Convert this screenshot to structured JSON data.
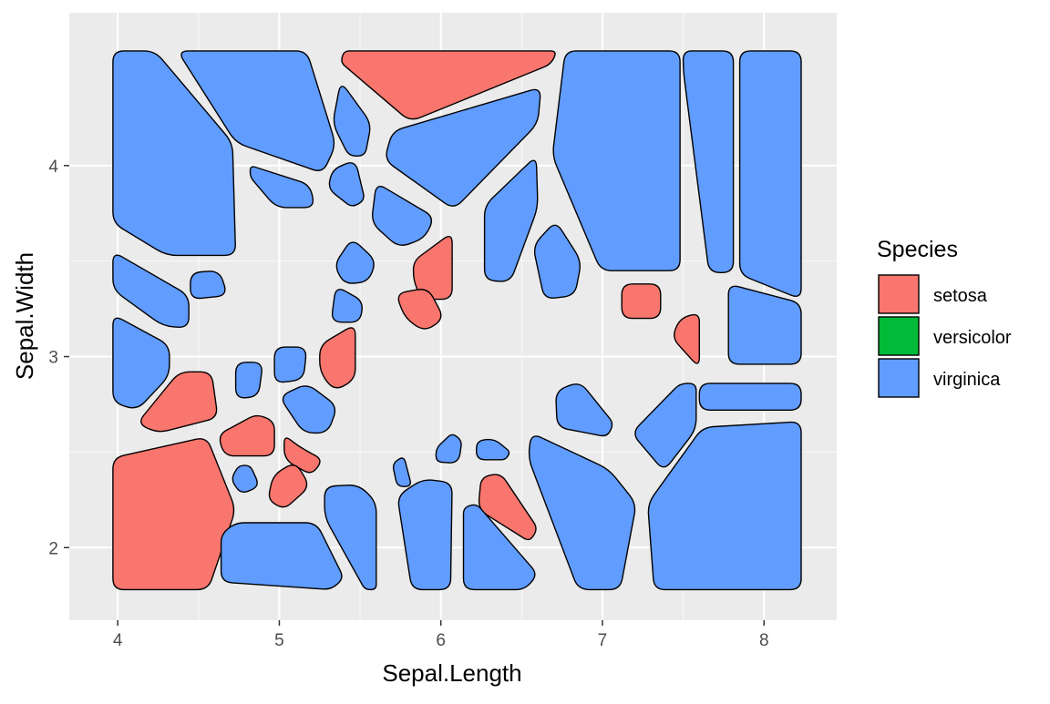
{
  "chart_data": {
    "type": "voronoi",
    "title": "",
    "xlabel": "Sepal.Length",
    "ylabel": "Sepal.Width",
    "xlim": [
      3.7,
      8.45
    ],
    "ylim": [
      1.62,
      4.8
    ],
    "x_ticks": [
      4,
      5,
      6,
      7,
      8
    ],
    "y_ticks": [
      2,
      3,
      4
    ],
    "x_tick_labels": [
      "4",
      "5",
      "6",
      "7",
      "8"
    ],
    "y_tick_labels": [
      "2",
      "3",
      "4"
    ],
    "grid": true,
    "legend": {
      "title": "Species",
      "position": "right",
      "entries": [
        {
          "label": "setosa",
          "color": "#F8766D"
        },
        {
          "label": "versicolor",
          "color": "#00BA38"
        },
        {
          "label": "virginica",
          "color": "#619CFF"
        }
      ]
    },
    "colors": {
      "panel_background": "#EBEBEB",
      "grid_major": "#FFFFFF",
      "setosa": "#F8766D",
      "versicolor": "#00BA38",
      "virginica": "#619CFF",
      "outline": "#000000"
    },
    "cells": [
      {
        "species": "virginica",
        "polygon": [
          [
            3.97,
            4.6
          ],
          [
            4.23,
            4.6
          ],
          [
            4.71,
            4.12
          ],
          [
            4.73,
            3.53
          ],
          [
            4.3,
            3.53
          ],
          [
            3.97,
            3.7
          ]
        ]
      },
      {
        "species": "virginica",
        "polygon": [
          [
            4.37,
            4.6
          ],
          [
            5.17,
            4.6
          ],
          [
            5.35,
            4.11
          ],
          [
            5.27,
            3.96
          ],
          [
            4.73,
            4.12
          ]
        ]
      },
      {
        "species": "setosa",
        "polygon": [
          [
            5.4,
            4.6
          ],
          [
            6.72,
            4.6
          ],
          [
            6.68,
            4.53
          ],
          [
            5.81,
            4.23
          ],
          [
            5.38,
            4.54
          ]
        ]
      },
      {
        "species": "virginica",
        "polygon": [
          [
            6.77,
            4.6
          ],
          [
            7.48,
            4.6
          ],
          [
            7.48,
            3.45
          ],
          [
            6.99,
            3.45
          ],
          [
            6.69,
            4.05
          ]
        ]
      },
      {
        "species": "virginica",
        "polygon": [
          [
            7.5,
            4.6
          ],
          [
            7.81,
            4.6
          ],
          [
            7.81,
            3.44
          ],
          [
            7.66,
            3.44
          ],
          [
            7.5,
            4.5
          ]
        ]
      },
      {
        "species": "virginica",
        "polygon": [
          [
            7.85,
            4.6
          ],
          [
            8.23,
            4.6
          ],
          [
            8.23,
            3.3
          ],
          [
            7.85,
            3.43
          ]
        ]
      },
      {
        "species": "virginica",
        "polygon": [
          [
            5.38,
            4.44
          ],
          [
            5.57,
            4.22
          ],
          [
            5.53,
            4.05
          ],
          [
            5.43,
            4.05
          ],
          [
            5.33,
            4.22
          ]
        ]
      },
      {
        "species": "virginica",
        "polygon": [
          [
            5.7,
            4.18
          ],
          [
            6.62,
            4.41
          ],
          [
            6.6,
            4.22
          ],
          [
            6.08,
            3.77
          ],
          [
            5.65,
            4.03
          ]
        ]
      },
      {
        "species": "virginica",
        "polygon": [
          [
            4.82,
            4.0
          ],
          [
            5.19,
            3.9
          ],
          [
            5.22,
            3.78
          ],
          [
            4.98,
            3.78
          ],
          [
            4.82,
            3.94
          ]
        ]
      },
      {
        "species": "virginica",
        "polygon": [
          [
            5.33,
            3.98
          ],
          [
            5.47,
            4.03
          ],
          [
            5.53,
            3.82
          ],
          [
            5.45,
            3.78
          ],
          [
            5.3,
            3.88
          ]
        ]
      },
      {
        "species": "virginica",
        "polygon": [
          [
            5.6,
            3.91
          ],
          [
            5.96,
            3.73
          ],
          [
            5.9,
            3.62
          ],
          [
            5.74,
            3.57
          ],
          [
            5.57,
            3.7
          ]
        ]
      },
      {
        "species": "virginica",
        "polygon": [
          [
            6.27,
            3.79
          ],
          [
            6.59,
            4.05
          ],
          [
            6.6,
            3.78
          ],
          [
            6.43,
            3.39
          ],
          [
            6.27,
            3.4
          ]
        ]
      },
      {
        "species": "virginica",
        "polygon": [
          [
            6.57,
            3.58
          ],
          [
            6.71,
            3.71
          ],
          [
            6.87,
            3.5
          ],
          [
            6.83,
            3.32
          ],
          [
            6.64,
            3.3
          ]
        ]
      },
      {
        "species": "virginica",
        "polygon": [
          [
            3.97,
            3.55
          ],
          [
            4.44,
            3.32
          ],
          [
            4.44,
            3.15
          ],
          [
            4.28,
            3.16
          ],
          [
            3.97,
            3.35
          ]
        ]
      },
      {
        "species": "virginica",
        "polygon": [
          [
            4.45,
            3.44
          ],
          [
            4.63,
            3.45
          ],
          [
            4.68,
            3.32
          ],
          [
            4.45,
            3.3
          ]
        ]
      },
      {
        "species": "virginica",
        "polygon": [
          [
            5.45,
            3.62
          ],
          [
            5.6,
            3.5
          ],
          [
            5.55,
            3.39
          ],
          [
            5.4,
            3.38
          ],
          [
            5.34,
            3.48
          ]
        ]
      },
      {
        "species": "setosa",
        "polygon": [
          [
            5.83,
            3.5
          ],
          [
            6.07,
            3.65
          ],
          [
            6.07,
            3.3
          ],
          [
            5.88,
            3.3
          ],
          [
            5.83,
            3.4
          ]
        ]
      },
      {
        "species": "virginica",
        "polygon": [
          [
            5.35,
            3.37
          ],
          [
            5.52,
            3.29
          ],
          [
            5.5,
            3.18
          ],
          [
            5.32,
            3.18
          ]
        ]
      },
      {
        "species": "setosa",
        "polygon": [
          [
            5.72,
            3.33
          ],
          [
            5.92,
            3.36
          ],
          [
            6.02,
            3.2
          ],
          [
            5.9,
            3.13
          ],
          [
            5.78,
            3.2
          ]
        ]
      },
      {
        "species": "setosa",
        "polygon": [
          [
            7.12,
            3.38
          ],
          [
            7.36,
            3.38
          ],
          [
            7.36,
            3.2
          ],
          [
            7.12,
            3.2
          ]
        ]
      },
      {
        "species": "setosa",
        "polygon": [
          [
            7.48,
            3.2
          ],
          [
            7.6,
            3.23
          ],
          [
            7.6,
            2.94
          ],
          [
            7.43,
            3.1
          ]
        ]
      },
      {
        "species": "virginica",
        "polygon": [
          [
            7.78,
            3.38
          ],
          [
            8.23,
            3.28
          ],
          [
            8.23,
            2.96
          ],
          [
            7.78,
            2.96
          ]
        ]
      },
      {
        "species": "virginica",
        "polygon": [
          [
            3.97,
            3.22
          ],
          [
            4.32,
            3.06
          ],
          [
            4.32,
            2.9
          ],
          [
            4.12,
            2.72
          ],
          [
            3.97,
            2.76
          ]
        ]
      },
      {
        "species": "setosa",
        "polygon": [
          [
            5.25,
            3.06
          ],
          [
            5.47,
            3.17
          ],
          [
            5.47,
            2.88
          ],
          [
            5.34,
            2.82
          ],
          [
            5.25,
            2.92
          ]
        ]
      },
      {
        "species": "virginica",
        "polygon": [
          [
            4.97,
            3.05
          ],
          [
            5.17,
            3.05
          ],
          [
            5.15,
            2.88
          ],
          [
            4.97,
            2.86
          ]
        ]
      },
      {
        "species": "virginica",
        "polygon": [
          [
            4.73,
            2.97
          ],
          [
            4.9,
            2.97
          ],
          [
            4.87,
            2.79
          ],
          [
            4.73,
            2.78
          ]
        ]
      },
      {
        "species": "setosa",
        "polygon": [
          [
            4.12,
            2.65
          ],
          [
            4.38,
            2.92
          ],
          [
            4.58,
            2.92
          ],
          [
            4.62,
            2.68
          ],
          [
            4.25,
            2.6
          ]
        ]
      },
      {
        "species": "virginica",
        "polygon": [
          [
            5.0,
            2.79
          ],
          [
            5.17,
            2.86
          ],
          [
            5.36,
            2.74
          ],
          [
            5.3,
            2.6
          ],
          [
            5.15,
            2.6
          ]
        ]
      },
      {
        "species": "virginica",
        "polygon": [
          [
            6.71,
            2.82
          ],
          [
            6.86,
            2.87
          ],
          [
            7.07,
            2.65
          ],
          [
            7.03,
            2.58
          ],
          [
            6.72,
            2.63
          ]
        ]
      },
      {
        "species": "virginica",
        "polygon": [
          [
            7.18,
            2.6
          ],
          [
            7.48,
            2.86
          ],
          [
            7.58,
            2.86
          ],
          [
            7.58,
            2.62
          ],
          [
            7.38,
            2.4
          ]
        ]
      },
      {
        "species": "virginica",
        "polygon": [
          [
            7.6,
            2.86
          ],
          [
            8.23,
            2.86
          ],
          [
            8.23,
            2.72
          ],
          [
            7.6,
            2.72
          ]
        ]
      },
      {
        "species": "setosa",
        "polygon": [
          [
            4.62,
            2.59
          ],
          [
            4.86,
            2.7
          ],
          [
            4.97,
            2.66
          ],
          [
            4.97,
            2.48
          ],
          [
            4.66,
            2.48
          ]
        ]
      },
      {
        "species": "setosa",
        "polygon": [
          [
            5.03,
            2.59
          ],
          [
            5.12,
            2.53
          ],
          [
            5.27,
            2.46
          ],
          [
            5.2,
            2.38
          ],
          [
            5.03,
            2.46
          ]
        ]
      },
      {
        "species": "virginica",
        "polygon": [
          [
            5.97,
            2.52
          ],
          [
            6.07,
            2.6
          ],
          [
            6.13,
            2.56
          ],
          [
            6.11,
            2.44
          ],
          [
            5.97,
            2.45
          ]
        ]
      },
      {
        "species": "virginica",
        "polygon": [
          [
            6.22,
            2.56
          ],
          [
            6.33,
            2.57
          ],
          [
            6.43,
            2.5
          ],
          [
            6.4,
            2.46
          ],
          [
            6.22,
            2.46
          ]
        ]
      },
      {
        "species": "virginica",
        "polygon": [
          [
            6.56,
            2.6
          ],
          [
            7.04,
            2.41
          ],
          [
            7.21,
            2.23
          ],
          [
            7.11,
            1.78
          ],
          [
            6.85,
            1.78
          ],
          [
            6.54,
            2.47
          ]
        ]
      },
      {
        "species": "virginica",
        "polygon": [
          [
            7.28,
            2.23
          ],
          [
            7.62,
            2.63
          ],
          [
            8.23,
            2.66
          ],
          [
            8.23,
            1.78
          ],
          [
            7.32,
            1.78
          ]
        ]
      },
      {
        "species": "setosa",
        "polygon": [
          [
            3.97,
            2.47
          ],
          [
            4.55,
            2.58
          ],
          [
            4.73,
            2.2
          ],
          [
            4.56,
            1.78
          ],
          [
            3.97,
            1.78
          ]
        ]
      },
      {
        "species": "virginica",
        "polygon": [
          [
            4.75,
            2.43
          ],
          [
            4.82,
            2.43
          ],
          [
            4.88,
            2.32
          ],
          [
            4.76,
            2.28
          ],
          [
            4.7,
            2.36
          ]
        ]
      },
      {
        "species": "virginica",
        "polygon": [
          [
            5.7,
            2.44
          ],
          [
            5.77,
            2.48
          ],
          [
            5.82,
            2.32
          ],
          [
            5.73,
            2.32
          ]
        ]
      },
      {
        "species": "setosa",
        "polygon": [
          [
            4.96,
            2.38
          ],
          [
            5.1,
            2.45
          ],
          [
            5.19,
            2.32
          ],
          [
            5.03,
            2.2
          ],
          [
            4.93,
            2.25
          ]
        ]
      },
      {
        "species": "setosa",
        "polygon": [
          [
            6.25,
            2.37
          ],
          [
            6.37,
            2.39
          ],
          [
            6.6,
            2.1
          ],
          [
            6.55,
            2.03
          ],
          [
            6.23,
            2.2
          ]
        ]
      },
      {
        "species": "virginica",
        "polygon": [
          [
            5.28,
            2.32
          ],
          [
            5.49,
            2.33
          ],
          [
            5.6,
            2.24
          ],
          [
            5.6,
            1.78
          ],
          [
            5.53,
            1.78
          ],
          [
            5.28,
            2.16
          ]
        ]
      },
      {
        "species": "virginica",
        "polygon": [
          [
            5.73,
            2.27
          ],
          [
            5.89,
            2.36
          ],
          [
            6.07,
            2.34
          ],
          [
            6.06,
            1.78
          ],
          [
            5.82,
            1.78
          ]
        ]
      },
      {
        "species": "virginica",
        "polygon": [
          [
            6.14,
            2.21
          ],
          [
            6.22,
            2.23
          ],
          [
            6.6,
            1.86
          ],
          [
            6.52,
            1.78
          ],
          [
            6.14,
            1.78
          ]
        ]
      },
      {
        "species": "virginica",
        "polygon": [
          [
            4.64,
            2.07
          ],
          [
            4.73,
            2.13
          ],
          [
            5.23,
            2.13
          ],
          [
            5.4,
            1.84
          ],
          [
            5.32,
            1.78
          ],
          [
            4.64,
            1.82
          ]
        ]
      }
    ]
  }
}
